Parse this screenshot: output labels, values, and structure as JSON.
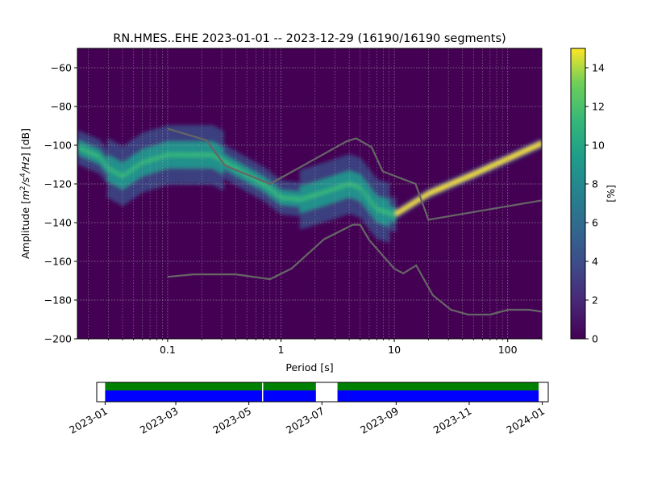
{
  "chart_data": [
    {
      "type": "heatmap",
      "title": "RN.HMES..EHE   2023-01-01 -- 2023-12-29  (16190/16190 segments)",
      "xlabel": "Period [s]",
      "ylabel_parts": {
        "prefix": "Amplitude [",
        "m": "m",
        "exp2": "2",
        "s": "/s",
        "exp4": "4",
        "hz": "/Hz",
        "suffix": "] [dB]"
      },
      "x_scale": "log",
      "xlim": [
        0.016,
        200
      ],
      "ylim": [
        -200,
        -50
      ],
      "x_ticks": [
        {
          "value": 0.1,
          "label": "0.1"
        },
        {
          "value": 1,
          "label": "1"
        },
        {
          "value": 10,
          "label": "10"
        },
        {
          "value": 100,
          "label": "100"
        }
      ],
      "y_ticks": [
        {
          "value": -60,
          "label": "−60"
        },
        {
          "value": -80,
          "label": "−80"
        },
        {
          "value": -100,
          "label": "−100"
        },
        {
          "value": -120,
          "label": "−120"
        },
        {
          "value": -140,
          "label": "−140"
        },
        {
          "value": -160,
          "label": "−160"
        },
        {
          "value": -180,
          "label": "−180"
        },
        {
          "value": -200,
          "label": "−200"
        }
      ],
      "grid": true,
      "colormap": "viridis",
      "colorbar": {
        "label": "[%]",
        "range": [
          0,
          15
        ],
        "ticks": [
          {
            "value": 0,
            "label": "0"
          },
          {
            "value": 2,
            "label": "2"
          },
          {
            "value": 4,
            "label": "4"
          },
          {
            "value": 6,
            "label": "6"
          },
          {
            "value": 8,
            "label": "8"
          },
          {
            "value": 10,
            "label": "10"
          },
          {
            "value": 12,
            "label": "12"
          },
          {
            "value": 14,
            "label": "14"
          }
        ]
      },
      "density_centerline": [
        {
          "period": 0.016,
          "db": -101
        },
        {
          "period": 0.025,
          "db": -106
        },
        {
          "period": 0.03,
          "db": -112
        },
        {
          "period": 0.04,
          "db": -116
        },
        {
          "period": 0.06,
          "db": -109
        },
        {
          "period": 0.1,
          "db": -105
        },
        {
          "period": 0.15,
          "db": -105
        },
        {
          "period": 0.25,
          "db": -105
        },
        {
          "period": 0.4,
          "db": -112
        },
        {
          "period": 0.7,
          "db": -120
        },
        {
          "period": 1.0,
          "db": -127
        },
        {
          "period": 1.5,
          "db": -128
        },
        {
          "period": 2.5,
          "db": -124
        },
        {
          "period": 4,
          "db": -120
        },
        {
          "period": 5,
          "db": -122
        },
        {
          "period": 7,
          "db": -133
        },
        {
          "period": 10,
          "db": -136
        },
        {
          "period": 20,
          "db": -125
        },
        {
          "period": 50,
          "db": -115
        },
        {
          "period": 100,
          "db": -107
        },
        {
          "period": 200,
          "db": -99
        }
      ],
      "noise_models": [
        {
          "id": "new-high-noise-model",
          "color": "#666666",
          "points": [
            [
              0.1,
              -91.5
            ],
            [
              0.22,
              -97.4
            ],
            [
              0.32,
              -110.5
            ],
            [
              0.8,
              -120.0
            ],
            [
              3.8,
              -98.0
            ],
            [
              4.6,
              -96.5
            ],
            [
              6.3,
              -101.0
            ],
            [
              7.9,
              -113.5
            ],
            [
              15.4,
              -120.0
            ],
            [
              20,
              -138.5
            ],
            [
              200,
              -128.5
            ]
          ]
        },
        {
          "id": "new-low-noise-model",
          "color": "#666666",
          "points": [
            [
              0.1,
              -168.0
            ],
            [
              0.17,
              -166.7
            ],
            [
              0.4,
              -166.7
            ],
            [
              0.8,
              -169.2
            ],
            [
              1.24,
              -163.7
            ],
            [
              2.4,
              -148.6
            ],
            [
              4.3,
              -141.1
            ],
            [
              5.0,
              -141.1
            ],
            [
              6.0,
              -149.0
            ],
            [
              10.0,
              -163.8
            ],
            [
              12.0,
              -166.2
            ],
            [
              15.6,
              -162.1
            ],
            [
              21.9,
              -177.5
            ],
            [
              31.6,
              -185.0
            ],
            [
              45,
              -187.5
            ],
            [
              70,
              -187.5
            ],
            [
              101,
              -185.0
            ],
            [
              154,
              -185.0
            ],
            [
              200,
              -186.0
            ]
          ]
        }
      ]
    },
    {
      "type": "timeline",
      "x_ticks": [
        {
          "value": "2023-01-01",
          "label": "2023-01"
        },
        {
          "value": "2023-03-01",
          "label": "2023-03"
        },
        {
          "value": "2023-05-01",
          "label": "2023-05"
        },
        {
          "value": "2023-07-01",
          "label": "2023-07"
        },
        {
          "value": "2023-09-01",
          "label": "2023-09"
        },
        {
          "value": "2023-11-01",
          "label": "2023-11"
        },
        {
          "value": "2024-01-01",
          "label": "2024-01"
        }
      ],
      "xlim": [
        "2022-12-25",
        "2024-01-06"
      ],
      "colors": {
        "data": "#0000ff",
        "used": "#008000"
      },
      "segments": [
        {
          "start": "2023-01-01",
          "end": "2023-05-12"
        },
        {
          "start": "2023-05-13",
          "end": "2023-06-26"
        },
        {
          "start": "2023-07-14",
          "end": "2023-12-29"
        }
      ]
    }
  ]
}
